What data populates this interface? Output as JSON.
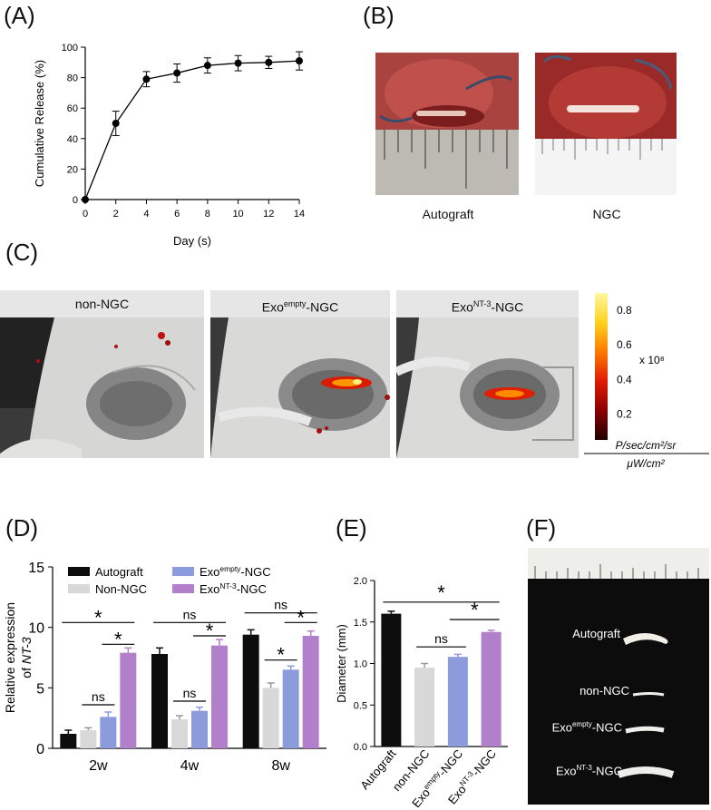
{
  "panels": {
    "a": "(A)",
    "b": "(B)",
    "c": "(C)",
    "d": "(D)",
    "e": "(E)",
    "f": "(F)"
  },
  "panel_b": {
    "left_caption": "Autograft",
    "right_caption": "NGC"
  },
  "panel_c": {
    "headers": [
      "non-NGC",
      "Exo",
      "Exo"
    ],
    "header_sup": [
      "",
      "empty",
      "NT-3"
    ],
    "header_suffix": [
      "",
      "-NGC",
      "-NGC"
    ],
    "colorbar": {
      "ticks": [
        "0.8",
        "0.6",
        "0.4",
        "0.2"
      ],
      "scale": "x 10⁸",
      "unit_num": "P/sec/cm²/sr",
      "unit_den": "μW/cm²",
      "colors": [
        "#fff8a0",
        "#ffd21e",
        "#ff7a00",
        "#e01a00",
        "#8a0000",
        "#200000"
      ]
    }
  },
  "panel_f": {
    "labels": [
      "Autograft",
      "non-NGC",
      "Exo",
      "Exo"
    ],
    "sup": [
      "",
      "",
      "empty",
      "NT-3"
    ],
    "suffix": [
      "",
      "",
      "-NGC",
      "-NGC"
    ]
  },
  "chart_data": [
    {
      "id": "A",
      "type": "line",
      "xlabel": "Day (s)",
      "ylabel": "Cumulative Release (%)",
      "x": [
        0,
        2,
        4,
        6,
        8,
        10,
        12,
        14
      ],
      "y": [
        0,
        50,
        79,
        83,
        88,
        89.5,
        90,
        91
      ],
      "err": [
        0,
        8,
        5,
        6,
        5,
        5,
        4,
        6
      ],
      "xlim": [
        0,
        14
      ],
      "ylim": [
        0,
        100
      ],
      "xticks": [
        0,
        2,
        4,
        6,
        8,
        10,
        12,
        14
      ],
      "yticks": [
        0,
        20,
        40,
        60,
        80,
        100
      ],
      "grid": false
    },
    {
      "id": "D",
      "type": "bar",
      "ylabel_line1": "Relative expression",
      "ylabel_line2": "of ",
      "ylabel_italic": "NT-3",
      "categories": [
        "2w",
        "4w",
        "8w"
      ],
      "ylim": [
        0,
        15
      ],
      "yticks": [
        0,
        5,
        10,
        15
      ],
      "series": [
        {
          "name": "Autograft",
          "color": "#0d0d0d",
          "values": [
            1.2,
            7.8,
            9.4
          ],
          "err": [
            0.3,
            0.5,
            0.4
          ]
        },
        {
          "name": "Non-NGC",
          "color": "#d8d8d8",
          "values": [
            1.5,
            2.4,
            5.0
          ],
          "err": [
            0.2,
            0.3,
            0.4
          ]
        },
        {
          "name": "Exo",
          "sup": "empty",
          "suffix": "-NGC",
          "color": "#8b9bdc",
          "values": [
            2.6,
            3.1,
            6.5
          ],
          "err": [
            0.4,
            0.3,
            0.3
          ]
        },
        {
          "name": "Exo",
          "sup": "NT-3",
          "suffix": "-NGC",
          "color": "#b27fcb",
          "values": [
            7.9,
            8.5,
            9.3
          ],
          "err": [
            0.4,
            0.5,
            0.4
          ]
        }
      ],
      "legend": "top",
      "annotations": [
        {
          "group": 0,
          "from": 0,
          "to": 3,
          "level": 10.4,
          "text": "*"
        },
        {
          "group": 0,
          "from": 2,
          "to": 3,
          "level": 8.6,
          "text": "*"
        },
        {
          "group": 0,
          "from": 1,
          "to": 2,
          "level": 3.6,
          "text": "ns"
        },
        {
          "group": 1,
          "from": 0,
          "to": 3,
          "level": 10.4,
          "text": "ns"
        },
        {
          "group": 1,
          "from": 2,
          "to": 3,
          "level": 9.3,
          "text": "*"
        },
        {
          "group": 1,
          "from": 1,
          "to": 2,
          "level": 3.9,
          "text": "ns"
        },
        {
          "group": 2,
          "from": 0,
          "to": 3,
          "level": 11.2,
          "text": "ns"
        },
        {
          "group": 2,
          "from": 2,
          "to": 3,
          "level": 10.4,
          "text": "*"
        },
        {
          "group": 2,
          "from": 1,
          "to": 2,
          "level": 7.3,
          "text": "*"
        }
      ]
    },
    {
      "id": "E",
      "type": "bar",
      "ylabel": "Diameter (mm)",
      "categories": [
        {
          "name": "Autograft",
          "sup": "",
          "suffix": ""
        },
        {
          "name": "non-NGC",
          "sup": "",
          "suffix": ""
        },
        {
          "name": "Exo",
          "sup": "empty",
          "suffix": "-NGC"
        },
        {
          "name": "Exo",
          "sup": "NT-3",
          "suffix": "-NGC"
        }
      ],
      "values": [
        1.6,
        0.95,
        1.08,
        1.38
      ],
      "err": [
        0.03,
        0.05,
        0.03,
        0.02
      ],
      "colors": [
        "#0d0d0d",
        "#d8d8d8",
        "#8b9bdc",
        "#b27fcb"
      ],
      "ylim": [
        0,
        2.0
      ],
      "yticks": [
        "0.0",
        "0.5",
        "1.0",
        "1.5",
        "2.0"
      ],
      "annotations": [
        {
          "from": 0,
          "to": 3,
          "level": 1.74,
          "text": "*"
        },
        {
          "from": 2,
          "to": 3,
          "level": 1.53,
          "text": "*"
        },
        {
          "from": 1,
          "to": 2,
          "level": 1.2,
          "text": "ns"
        }
      ]
    }
  ]
}
